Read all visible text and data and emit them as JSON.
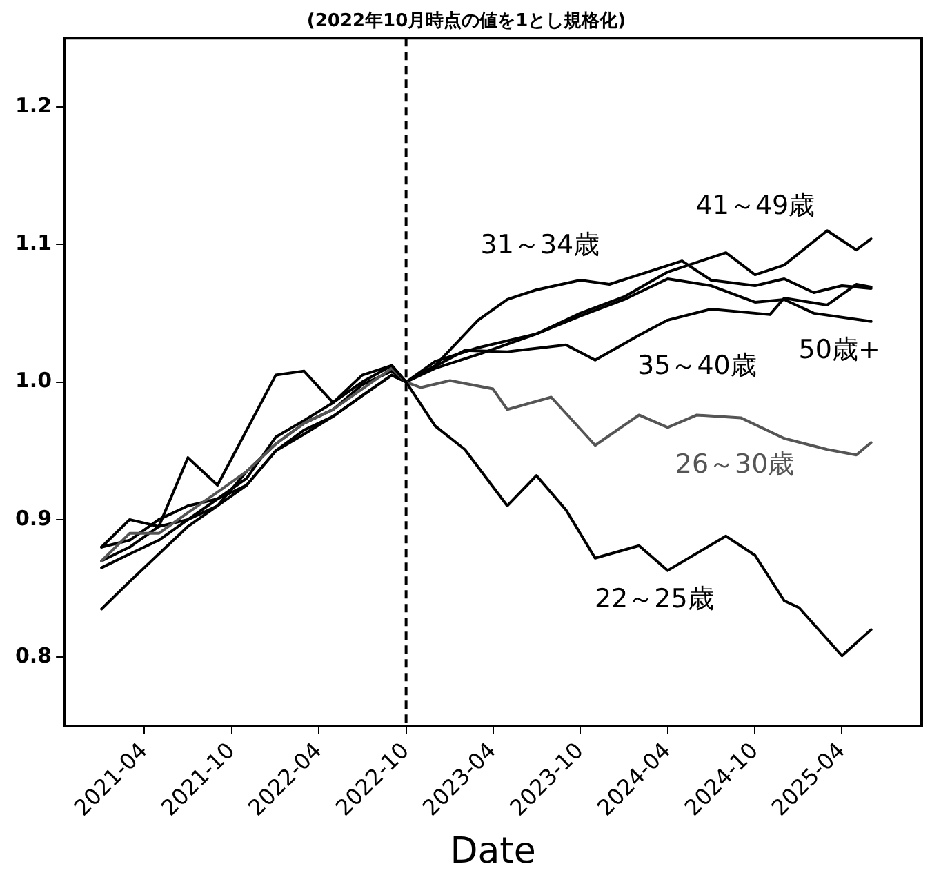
{
  "chart_data": {
    "type": "line",
    "title": "(2022年10月時点の値を1とし規格化)",
    "xlabel": "Date",
    "xlim": [
      "2020-10-15",
      "2025-09-15"
    ],
    "xticks": [
      "2021-04",
      "2021-10",
      "2022-04",
      "2022-10",
      "2023-04",
      "2023-10",
      "2024-04",
      "2024-10",
      "2025-04"
    ],
    "ylim": [
      0.75,
      1.25
    ],
    "yticks": [
      0.8,
      0.9,
      {
        "value": 1,
        "label": "1.0"
      },
      1.1,
      1.2
    ],
    "grid": false,
    "legend": false,
    "marker": "none",
    "line_style": "solid",
    "ref_lines": [
      {
        "axis": "x",
        "value": "2022-10",
        "color": "#000000",
        "line_style": "dashed"
      }
    ],
    "series": [
      {
        "name": "22～25歳",
        "color": "#000000",
        "x": [
          "2021-01",
          "2021-03",
          "2021-05",
          "2021-07",
          "2021-09",
          "2021-11",
          "2022-01",
          "2022-03",
          "2022-05",
          "2022-07",
          "2022-09",
          "2022-10",
          "2022-12",
          "2023-02",
          "2023-05",
          "2023-07",
          "2023-09",
          "2023-11",
          "2024-02",
          "2024-04",
          "2024-08",
          "2024-10",
          "2024-12",
          "2025-01",
          "2025-04",
          "2025-06"
        ],
        "values": [
          0.88,
          0.9,
          0.895,
          0.945,
          0.925,
          0.965,
          1.005,
          1.008,
          0.985,
          1.005,
          1.012,
          1.0,
          0.968,
          0.951,
          0.91,
          0.932,
          0.907,
          0.872,
          0.881,
          0.863,
          0.888,
          0.874,
          0.841,
          0.836,
          0.801,
          0.82
        ]
      },
      {
        "name": "26～30歳",
        "color": "#555555",
        "x": [
          "2021-01",
          "2021-03",
          "2021-05",
          "2021-07",
          "2021-09",
          "2021-11",
          "2022-01",
          "2022-03",
          "2022-05",
          "2022-07",
          "2022-09",
          "2022-10",
          "2022-11",
          "2023-01",
          "2023-04",
          "2023-05",
          "2023-08",
          "2023-11",
          "2024-02",
          "2024-04",
          "2024-06",
          "2024-09",
          "2024-12",
          "2025-03",
          "2025-05",
          "2025-06"
        ],
        "values": [
          0.87,
          0.89,
          0.89,
          0.905,
          0.92,
          0.935,
          0.955,
          0.97,
          0.98,
          0.995,
          1.01,
          1.0,
          0.996,
          1.001,
          0.995,
          0.98,
          0.989,
          0.954,
          0.976,
          0.967,
          0.976,
          0.974,
          0.959,
          0.951,
          0.947,
          0.956
        ]
      },
      {
        "name": "31～34歳",
        "color": "#000000",
        "x": [
          "2021-01",
          "2021-03",
          "2021-05",
          "2021-07",
          "2021-09",
          "2021-11",
          "2022-01",
          "2022-03",
          "2022-05",
          "2022-07",
          "2022-09",
          "2022-10",
          "2022-12",
          "2023-03",
          "2023-05",
          "2023-07",
          "2023-10",
          "2023-12",
          "2024-02",
          "2024-05",
          "2024-07",
          "2024-10",
          "2024-12",
          "2025-02",
          "2025-04",
          "2025-06"
        ],
        "values": [
          0.88,
          0.885,
          0.9,
          0.91,
          0.915,
          0.93,
          0.96,
          0.972,
          0.985,
          1.0,
          1.012,
          1.0,
          1.012,
          1.045,
          1.06,
          1.067,
          1.074,
          1.071,
          1.078,
          1.088,
          1.074,
          1.07,
          1.075,
          1.065,
          1.07,
          1.068
        ]
      },
      {
        "name": "35～40歳",
        "color": "#000000",
        "x": [
          "2021-01",
          "2021-03",
          "2021-05",
          "2021-07",
          "2021-09",
          "2021-11",
          "2022-01",
          "2022-03",
          "2022-05",
          "2022-07",
          "2022-09",
          "2022-10",
          "2023-02",
          "2023-05",
          "2023-09",
          "2023-11",
          "2024-02",
          "2024-04",
          "2024-07",
          "2024-11",
          "2024-12",
          "2025-03",
          "2025-05",
          "2025-06"
        ],
        "values": [
          0.865,
          0.875,
          0.885,
          0.9,
          0.915,
          0.925,
          0.95,
          0.965,
          0.975,
          0.99,
          1.005,
          1.0,
          1.023,
          1.022,
          1.027,
          1.016,
          1.034,
          1.045,
          1.053,
          1.049,
          1.061,
          1.056,
          1.071,
          1.069
        ]
      },
      {
        "name": "41～49歳",
        "color": "#000000",
        "x": [
          "2021-01",
          "2021-03",
          "2021-05",
          "2021-07",
          "2021-09",
          "2021-11",
          "2022-01",
          "2022-03",
          "2022-05",
          "2022-07",
          "2022-09",
          "2022-10",
          "2022-12",
          "2023-03",
          "2023-07",
          "2023-10",
          "2024-01",
          "2024-04",
          "2024-08",
          "2024-10",
          "2024-12",
          "2025-03",
          "2025-05",
          "2025-06"
        ],
        "values": [
          0.87,
          0.88,
          0.895,
          0.9,
          0.91,
          0.935,
          0.955,
          0.97,
          0.98,
          0.998,
          1.008,
          1.0,
          1.01,
          1.02,
          1.035,
          1.05,
          1.062,
          1.08,
          1.094,
          1.078,
          1.085,
          1.11,
          1.096,
          1.104
        ]
      },
      {
        "name": "50歳+",
        "color": "#000000",
        "x": [
          "2021-01",
          "2021-03",
          "2021-05",
          "2021-07",
          "2021-09",
          "2021-11",
          "2022-01",
          "2022-03",
          "2022-05",
          "2022-07",
          "2022-09",
          "2022-10",
          "2022-12",
          "2023-03",
          "2023-07",
          "2023-10",
          "2024-01",
          "2024-04",
          "2024-07",
          "2024-10",
          "2024-12",
          "2025-02",
          "2025-06"
        ],
        "values": [
          0.835,
          0.855,
          0.875,
          0.895,
          0.91,
          0.925,
          0.95,
          0.962,
          0.975,
          0.99,
          1.005,
          1.0,
          1.015,
          1.025,
          1.035,
          1.048,
          1.06,
          1.075,
          1.07,
          1.058,
          1.06,
          1.05,
          1.044
        ]
      }
    ]
  }
}
